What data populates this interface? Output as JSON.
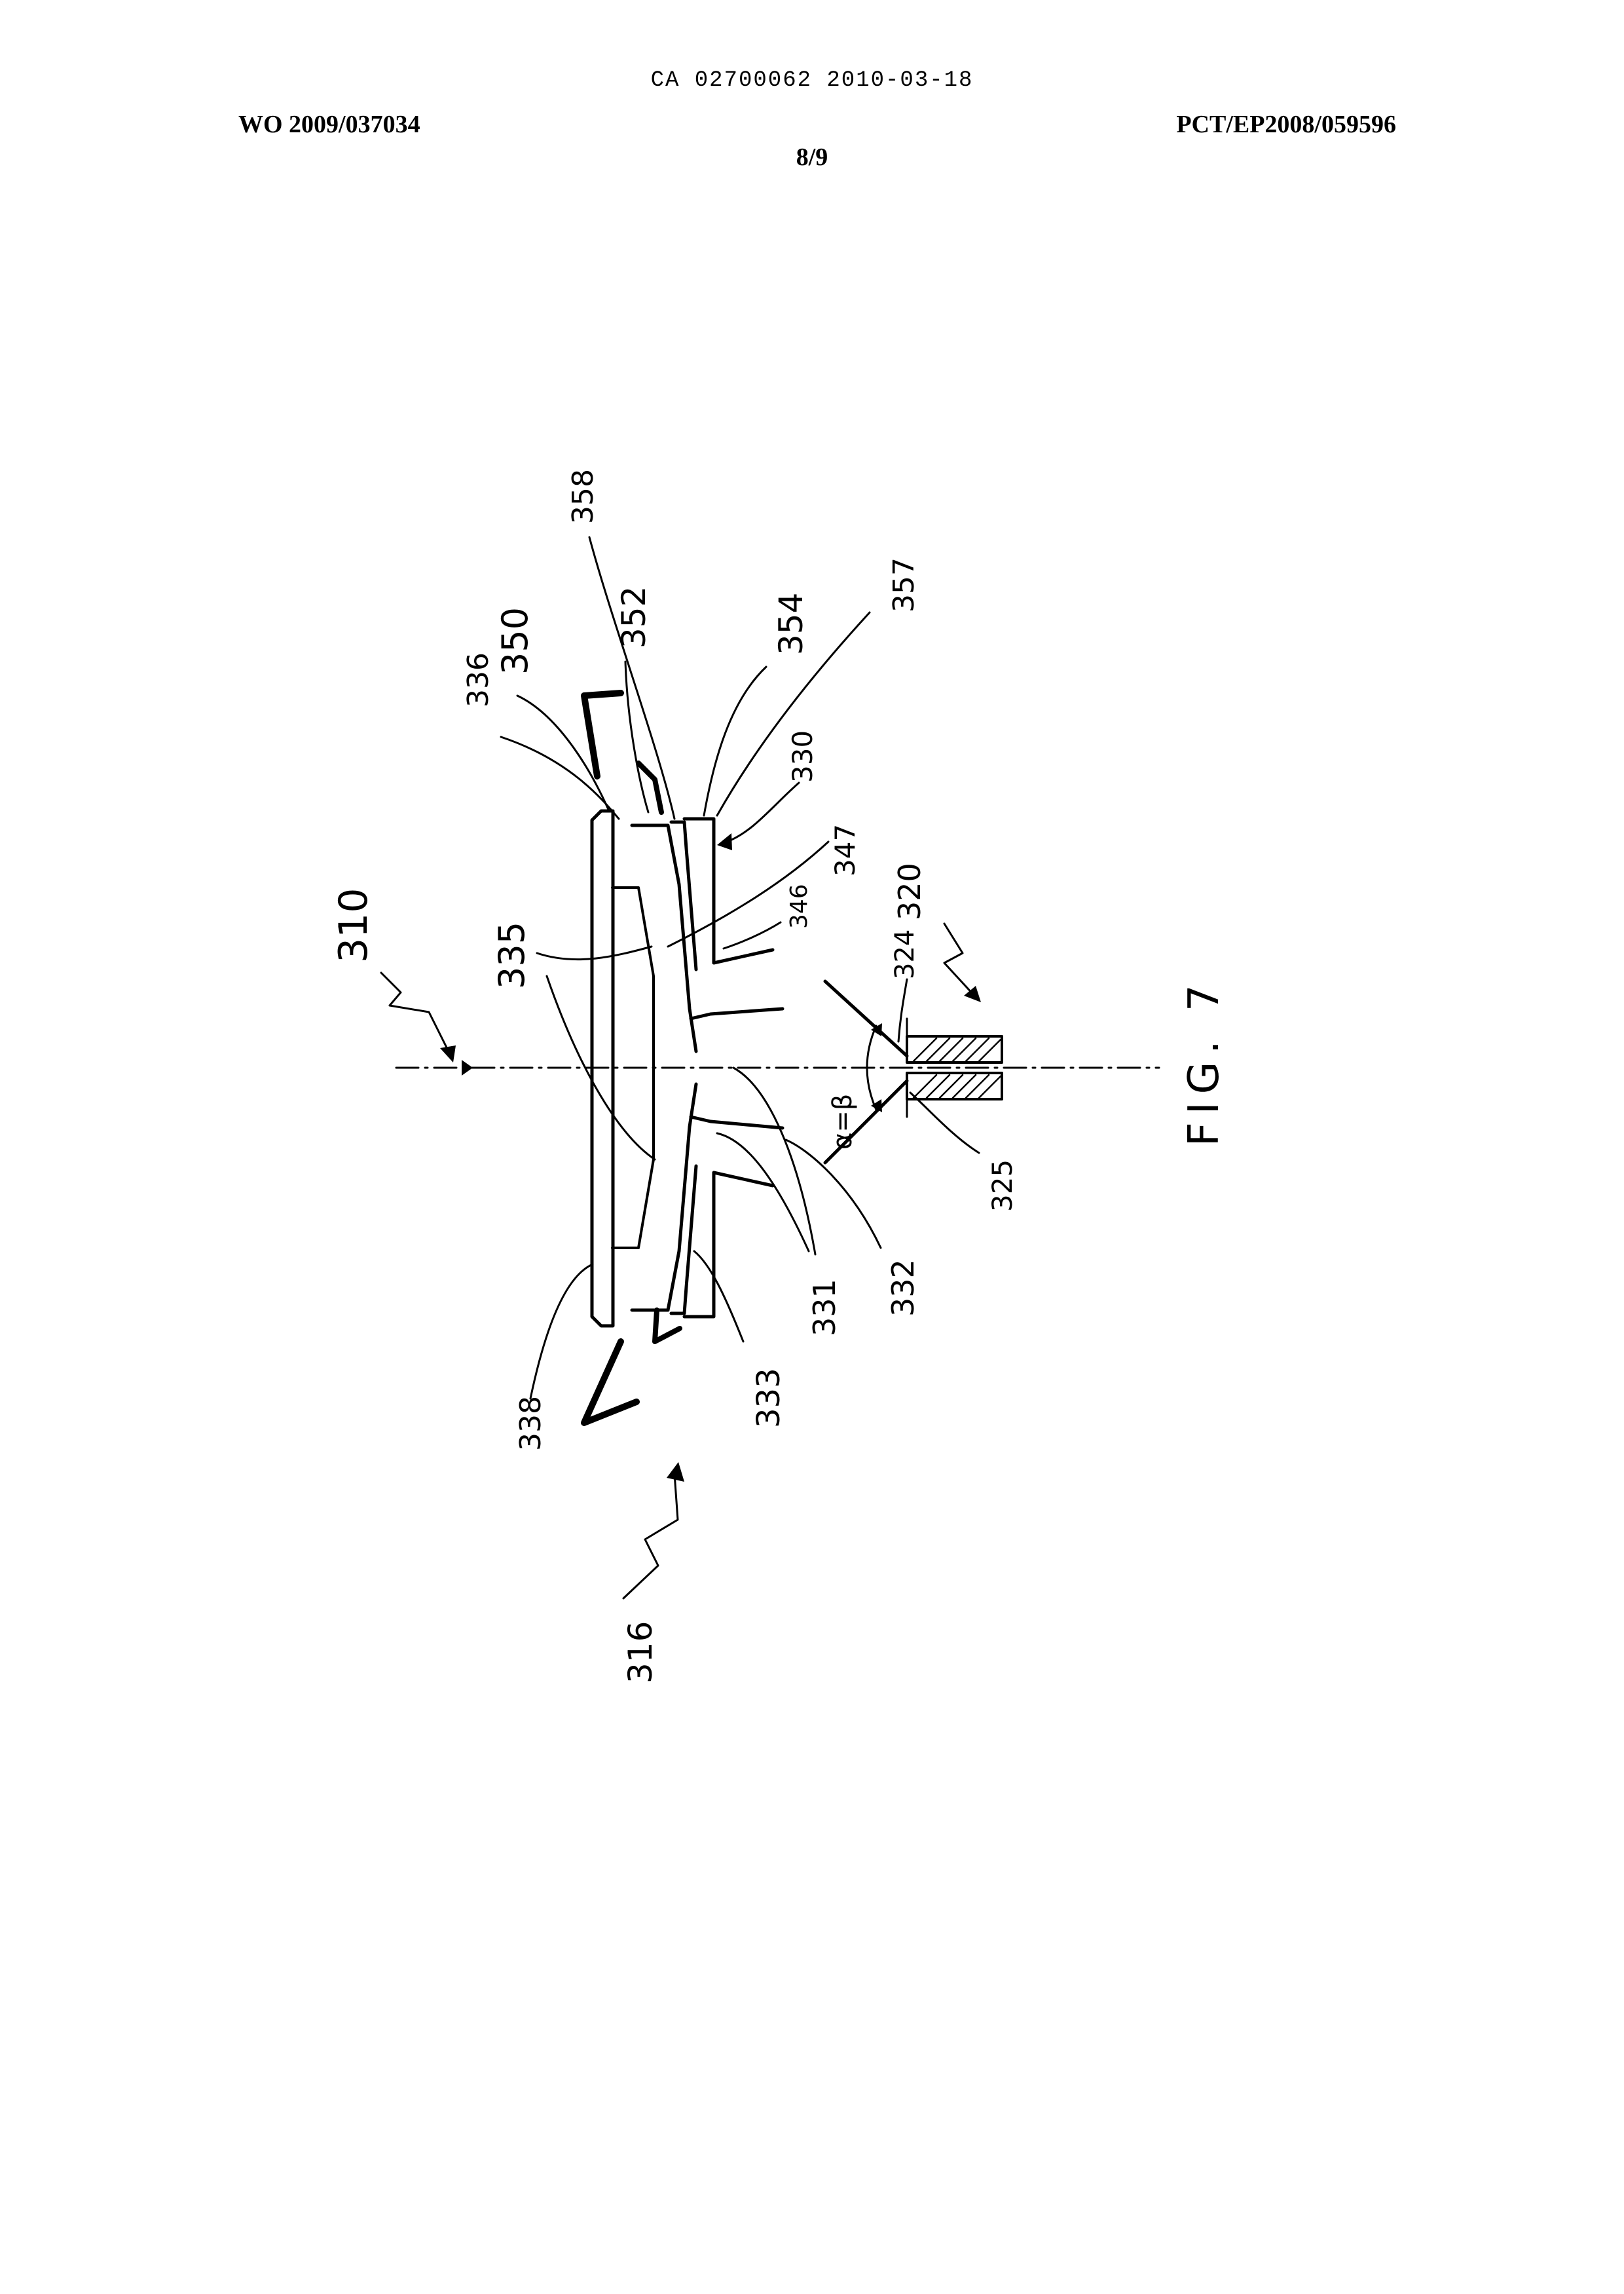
{
  "header": {
    "ca_line": "CA 02700062 2010-03-18",
    "left_number": "WO 2009/037034",
    "right_number": "PCT/EP2008/059596",
    "sheet": "8/9"
  },
  "figure": {
    "caption": "FIG. 7",
    "reference_numerals": [
      "310",
      "316",
      "320",
      "324",
      "325",
      "330",
      "331",
      "332",
      "333",
      "335",
      "336",
      "338",
      "346",
      "347",
      "350",
      "352",
      "354",
      "357",
      "358"
    ],
    "angle_label": "α=β"
  }
}
